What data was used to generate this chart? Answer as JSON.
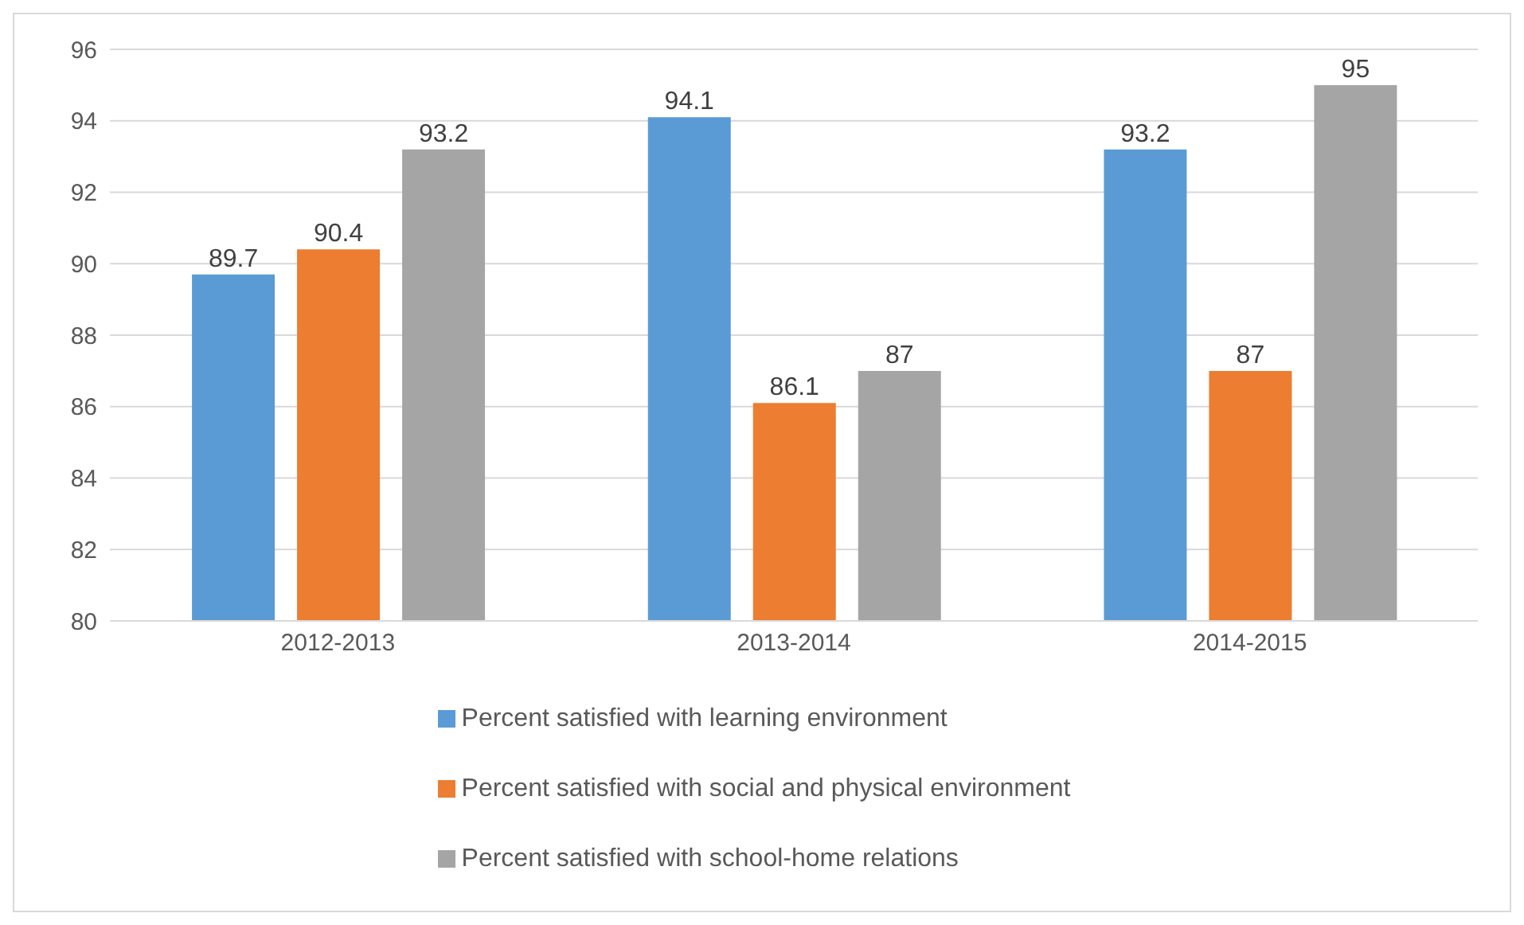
{
  "chart_data": {
    "type": "bar",
    "categories": [
      "2012-2013",
      "2013-2014",
      "2014-2015"
    ],
    "series": [
      {
        "name": "Percent satisfied with learning environment",
        "color": "#5b9bd5",
        "values": [
          89.7,
          94.1,
          93.2
        ]
      },
      {
        "name": "Percent satisfied with social and physical environment",
        "color": "#ed7d31",
        "values": [
          90.4,
          86.1,
          87
        ]
      },
      {
        "name": "Percent satisfied with school-home relations",
        "color": "#a5a5a5",
        "values": [
          93.2,
          87,
          95
        ]
      }
    ],
    "ylim": [
      80,
      96
    ],
    "yticks": [
      80,
      82,
      84,
      86,
      88,
      90,
      92,
      94,
      96
    ],
    "grid": "y",
    "legend": "bottom",
    "data_labels": true
  }
}
